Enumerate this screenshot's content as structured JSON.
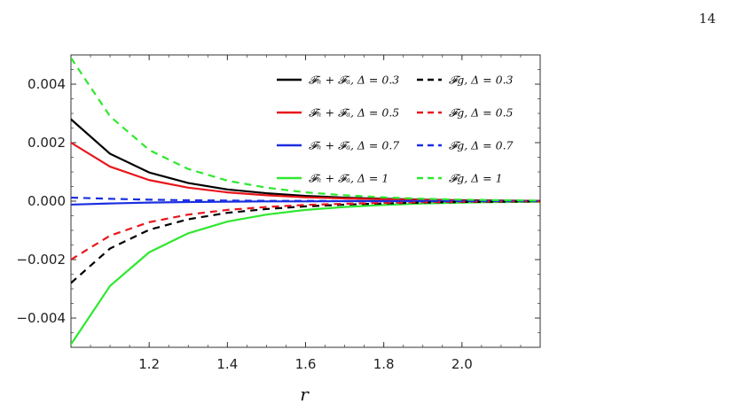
{
  "page_number": "14",
  "chart_data": {
    "type": "line",
    "xlabel": "r",
    "ylabel": "",
    "xlim": [
      1.0,
      2.2
    ],
    "ylim": [
      -0.005,
      0.005
    ],
    "x_ticks": [
      1.2,
      1.4,
      1.6,
      1.8,
      2.0
    ],
    "x_tick_labels": [
      "1.2",
      "1.4",
      "1.6",
      "1.8",
      "2.0"
    ],
    "y_ticks": [
      0.004,
      0.002,
      0.0,
      -0.002,
      -0.004
    ],
    "y_tick_labels": [
      "0.004",
      "0.002",
      "0.000",
      "−0.002",
      "−0.004"
    ],
    "legend_position": "top-right",
    "x": [
      1.0,
      1.1,
      1.2,
      1.3,
      1.4,
      1.5,
      1.6,
      1.7,
      1.8,
      1.9,
      2.0,
      2.1,
      2.2
    ],
    "series": [
      {
        "name": "𝓕ₕ + 𝓕ₐ, Δ = 0.3",
        "color": "#000000",
        "dash": "solid",
        "values": [
          0.0028,
          0.00162,
          0.00098,
          0.00062,
          0.0004,
          0.00027,
          0.00018,
          0.00012,
          8e-05,
          5e-05,
          3e-05,
          2e-05,
          1e-05
        ]
      },
      {
        "name": "𝓕ₕ + 𝓕ₐ, Δ = 0.5",
        "color": "#e8161b",
        "dash": "solid",
        "values": [
          0.002,
          0.00118,
          0.00072,
          0.00046,
          0.0003,
          0.0002,
          0.00013,
          9e-05,
          6e-05,
          4e-05,
          2e-05,
          1e-05,
          1e-05
        ]
      },
      {
        "name": "𝓕ₕ + 𝓕ₐ, Δ = 0.7",
        "color": "#1a2fe0",
        "dash": "solid",
        "values": [
          -0.00012,
          -8e-05,
          -5e-05,
          -3e-05,
          -2e-05,
          -1e-05,
          -1e-05,
          0.0,
          0.0,
          0.0,
          0.0,
          0.0,
          0.0
        ]
      },
      {
        "name": "𝓕ₕ + 𝓕ₐ, Δ = 1",
        "color": "#2ee82e",
        "dash": "solid",
        "values": [
          -0.0049,
          -0.0029,
          -0.00175,
          -0.0011,
          -0.0007,
          -0.00046,
          -0.0003,
          -0.0002,
          -0.00013,
          -8e-05,
          -5e-05,
          -3e-05,
          -2e-05
        ]
      },
      {
        "name": "𝓕g, Δ = 0.3",
        "color": "#000000",
        "dash": "dashed",
        "values": [
          -0.0028,
          -0.00162,
          -0.00098,
          -0.00062,
          -0.0004,
          -0.00027,
          -0.00018,
          -0.00012,
          -8e-05,
          -5e-05,
          -3e-05,
          -2e-05,
          -1e-05
        ]
      },
      {
        "name": "𝓕g, Δ = 0.5",
        "color": "#e8161b",
        "dash": "dashed",
        "values": [
          -0.002,
          -0.00118,
          -0.00072,
          -0.00046,
          -0.0003,
          -0.0002,
          -0.00013,
          -9e-05,
          -6e-05,
          -4e-05,
          -2e-05,
          -1e-05,
          -1e-05
        ]
      },
      {
        "name": "𝓕g, Δ = 0.7",
        "color": "#1a2fe0",
        "dash": "dashed",
        "values": [
          0.00012,
          8e-05,
          5e-05,
          3e-05,
          2e-05,
          1e-05,
          1e-05,
          0.0,
          0.0,
          0.0,
          0.0,
          0.0,
          0.0
        ]
      },
      {
        "name": "𝓕g, Δ = 1",
        "color": "#2ee82e",
        "dash": "dashed",
        "values": [
          0.0049,
          0.0029,
          0.00175,
          0.0011,
          0.0007,
          0.00046,
          0.0003,
          0.0002,
          0.00013,
          8e-05,
          5e-05,
          3e-05,
          2e-05
        ]
      }
    ]
  }
}
